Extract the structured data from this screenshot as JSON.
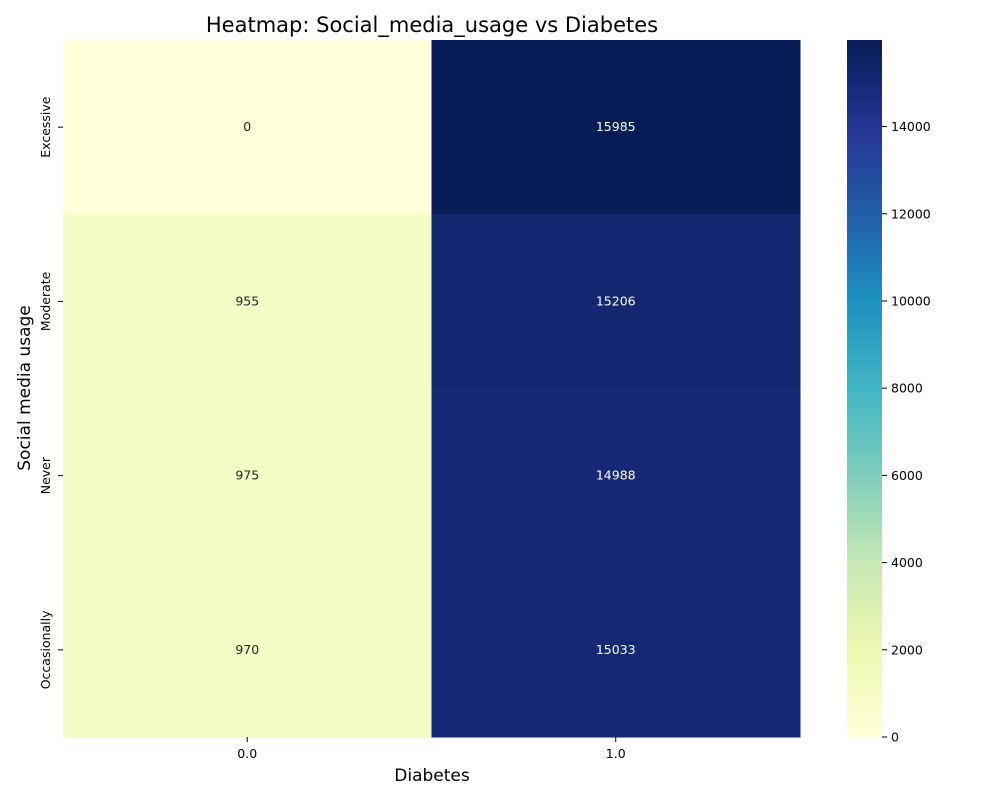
{
  "chart_data": {
    "type": "heatmap",
    "title": "Heatmap: Social_media_usage vs Diabetes",
    "xlabel": "Diabetes",
    "ylabel": "Social media usage",
    "x_categories": [
      "0.0",
      "1.0"
    ],
    "y_categories": [
      "Excessive",
      "Moderate",
      "Never",
      "Occasionally"
    ],
    "values": [
      [
        0,
        15985
      ],
      [
        955,
        15206
      ],
      [
        975,
        14988
      ],
      [
        970,
        15033
      ]
    ],
    "colorbar": {
      "colormap": "YlGnBu",
      "range": [
        0,
        15985
      ],
      "ticks": [
        "0",
        "2000",
        "4000",
        "6000",
        "8000",
        "10000",
        "12000",
        "14000"
      ]
    }
  }
}
